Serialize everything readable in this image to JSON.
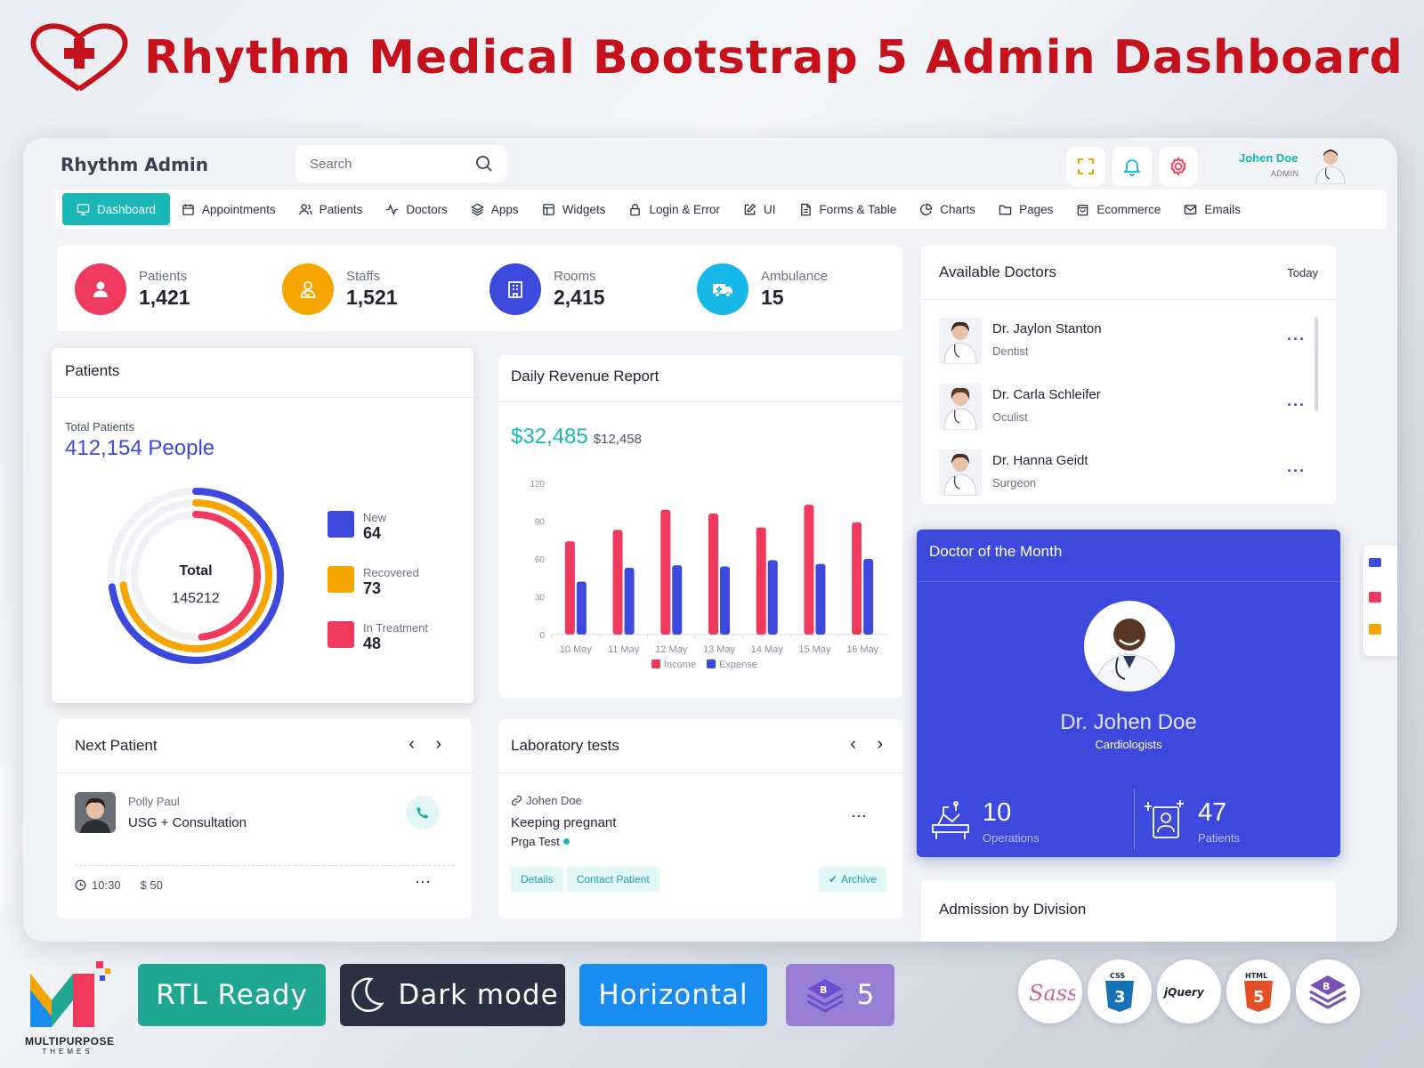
{
  "banner": {
    "title": "Rhythm Medical Bootstrap 5 Admin Dashboard"
  },
  "header": {
    "brand": "Rhythm Admin",
    "search_placeholder": "Search",
    "user_name": "Johen Doe",
    "user_role": "ADMIN"
  },
  "nav": [
    {
      "label": "Dashboard",
      "icon": "monitor-icon",
      "active": true
    },
    {
      "label": "Appointments",
      "icon": "calendar-icon"
    },
    {
      "label": "Patients",
      "icon": "users-icon"
    },
    {
      "label": "Doctors",
      "icon": "activity-icon"
    },
    {
      "label": "Apps",
      "icon": "layers-icon"
    },
    {
      "label": "Widgets",
      "icon": "grid-icon"
    },
    {
      "label": "Login & Error",
      "icon": "lock-icon"
    },
    {
      "label": "UI",
      "icon": "edit-icon"
    },
    {
      "label": "Forms & Table",
      "icon": "file-icon"
    },
    {
      "label": "Charts",
      "icon": "pie-icon"
    },
    {
      "label": "Pages",
      "icon": "folder-icon"
    },
    {
      "label": "Ecommerce",
      "icon": "bag-icon"
    },
    {
      "label": "Emails",
      "icon": "mail-icon"
    }
  ],
  "stats": [
    {
      "label": "Patients",
      "value": "1,421",
      "color": "#ef3a5d",
      "icon": "user-icon"
    },
    {
      "label": "Staffs",
      "value": "1,521",
      "color": "#f7a600",
      "icon": "staff-icon"
    },
    {
      "label": "Rooms",
      "value": "2,415",
      "color": "#3d48dc",
      "icon": "building-icon"
    },
    {
      "label": "Ambulance",
      "value": "15",
      "color": "#15b8e6",
      "icon": "ambulance-icon"
    }
  ],
  "patients_card": {
    "title": "Patients",
    "total_label": "Total Patients",
    "total_value": "412,154 People",
    "center_label": "Total",
    "center_value": "145212",
    "legend": [
      {
        "label": "New",
        "value": "64",
        "color": "#3d48dc"
      },
      {
        "label": "Recovered",
        "value": "73",
        "color": "#f7a600"
      },
      {
        "label": "In Treatment",
        "value": "48",
        "color": "#ef3a5d"
      }
    ]
  },
  "revenue": {
    "title": "Daily Revenue Report",
    "main_value": "$32,485",
    "sub_value": "$12,458"
  },
  "chart_data": {
    "type": "bar",
    "categories": [
      "10 May",
      "11 May",
      "12 May",
      "13 May",
      "14 May",
      "15 May",
      "16 May"
    ],
    "series": [
      {
        "name": "Income",
        "values": [
          74,
          83,
          99,
          96,
          85,
          103,
          89
        ],
        "color": "#ef3a5d"
      },
      {
        "name": "Expense",
        "values": [
          42,
          53,
          55,
          54,
          59,
          56,
          60
        ],
        "color": "#3d48dc"
      }
    ],
    "yticks": [
      0,
      30,
      60,
      90,
      120
    ],
    "ylim": [
      0,
      120
    ],
    "legend": "bottom-center"
  },
  "available_doctors": {
    "title": "Available Doctors",
    "filter": "Today",
    "doctors": [
      {
        "name": "Dr. Jaylon Stanton",
        "specialty": "Dentist"
      },
      {
        "name": "Dr. Carla Schleifer",
        "specialty": "Oculist"
      },
      {
        "name": "Dr. Hanna Geidt",
        "specialty": "Surgeon"
      }
    ]
  },
  "doctor_of_month": {
    "title": "Doctor of the Month",
    "name": "Dr. Johen Doe",
    "specialty": "Cardiologists",
    "operations_value": "10",
    "operations_label": "Operations",
    "patients_value": "47",
    "patients_label": "Patients"
  },
  "next_patient": {
    "title": "Next Patient",
    "name": "Polly Paul",
    "service": "USG + Consultation",
    "time": "10:30",
    "price": "$ 50"
  },
  "lab_tests": {
    "title": "Laboratory tests",
    "patient": "Johen Doe",
    "test": "Keeping pregnant",
    "sub": "Prga Test",
    "details": "Details",
    "contact": "Contact Patient",
    "archive": "Archive"
  },
  "admission": {
    "title": "Admission by Division"
  },
  "footer": {
    "brand": "MULTIPURPOSE",
    "brand_sub": "THEMES",
    "badges": [
      {
        "label": "RTL Ready",
        "color": "#1fa792"
      },
      {
        "label": "Dark mode",
        "color": "#2b3143"
      },
      {
        "label": "Horizontal",
        "color": "#1a8cf0"
      },
      {
        "label": "5",
        "color": "#9a7ed6"
      }
    ],
    "tech": [
      "Sass",
      "CSS3",
      "jQuery",
      "HTML5",
      "Bootstrap"
    ]
  }
}
